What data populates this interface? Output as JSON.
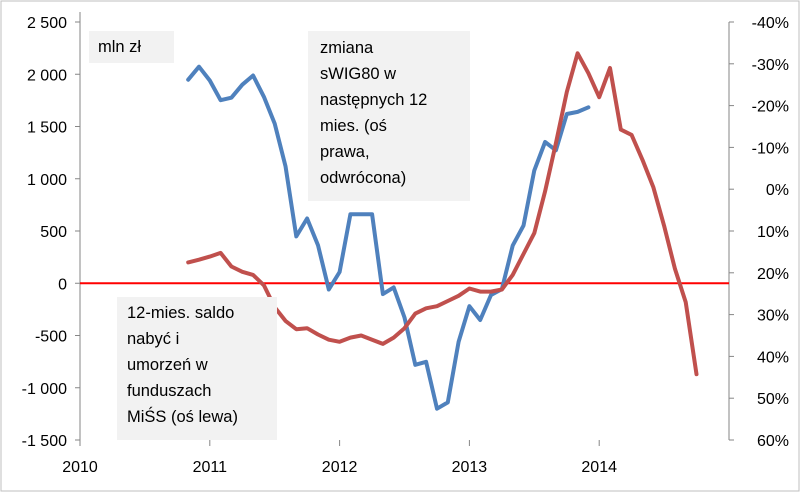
{
  "chart_data": {
    "type": "line",
    "x_ticks": [
      "2010",
      "2011",
      "2012",
      "2013",
      "2014"
    ],
    "left_axis": {
      "unit": "mln zł",
      "ylim": [
        -1500,
        2500
      ],
      "tick_labels": [
        "2 500",
        "2 000",
        "1 500",
        "1 000",
        "500",
        "0",
        "-500",
        "-1 000",
        "-1 500"
      ]
    },
    "right_axis": {
      "inverted": true,
      "ylim": [
        -40,
        60
      ],
      "tick_labels": [
        "-40%",
        "-30%",
        "-20%",
        "-10%",
        "0%",
        "10%",
        "20%",
        "30%",
        "40%",
        "50%",
        "60%"
      ]
    },
    "annotations": {
      "right_series": [
        "zmiana",
        "sWIG80 w",
        "następnych 12",
        "mies. (oś",
        "prawa,",
        "odwrócona)"
      ],
      "left_series": [
        "12-mies. saldo",
        "nabyć i",
        "umorzeń w",
        "funduszach",
        "MiŚS (oś lewa)"
      ]
    },
    "series": [
      {
        "axis": "right",
        "color": "#4f81bd",
        "points": [
          [
            "2010-11",
            -26.2
          ],
          [
            "2010-12",
            -29.3
          ],
          [
            "2011-01",
            -26.0
          ],
          [
            "2011-02",
            -21.3
          ],
          [
            "2011-03",
            -21.9
          ],
          [
            "2011-04",
            -25.0
          ],
          [
            "2011-05",
            -27.2
          ],
          [
            "2011-06",
            -22.1
          ],
          [
            "2011-07",
            -15.7
          ],
          [
            "2011-08",
            -5.5
          ],
          [
            "2011-09",
            11.3
          ],
          [
            "2011-10",
            7.0
          ],
          [
            "2011-11",
            13.4
          ],
          [
            "2011-12",
            24.0
          ],
          [
            "2012-01",
            19.8
          ],
          [
            "2012-02",
            6.0
          ],
          [
            "2012-03",
            6.0
          ],
          [
            "2012-04",
            6.0
          ],
          [
            "2012-05",
            25.1
          ],
          [
            "2012-06",
            23.5
          ],
          [
            "2012-07",
            30.7
          ],
          [
            "2012-08",
            42.0
          ],
          [
            "2012-09",
            41.3
          ],
          [
            "2012-10",
            52.5
          ],
          [
            "2012-11",
            51.0
          ],
          [
            "2012-12",
            36.5
          ],
          [
            "2013-01",
            28.0
          ],
          [
            "2013-02",
            31.3
          ],
          [
            "2013-03",
            25.3
          ],
          [
            "2013-04",
            23.9
          ],
          [
            "2013-05",
            13.5
          ],
          [
            "2013-06",
            8.7
          ],
          [
            "2013-07",
            -4.5
          ],
          [
            "2013-08",
            -11.3
          ],
          [
            "2013-09",
            -9.3
          ],
          [
            "2013-10",
            -18.0
          ],
          [
            "2013-11",
            -18.5
          ],
          [
            "2013-12",
            -19.6
          ]
        ]
      },
      {
        "axis": "left",
        "color": "#c0504d",
        "points": [
          [
            "2010-11",
            200
          ],
          [
            "2010-12",
            225
          ],
          [
            "2011-01",
            255
          ],
          [
            "2011-02",
            290
          ],
          [
            "2011-03",
            160
          ],
          [
            "2011-04",
            110
          ],
          [
            "2011-05",
            80
          ],
          [
            "2011-06",
            -20
          ],
          [
            "2011-07",
            -230
          ],
          [
            "2011-08",
            -360
          ],
          [
            "2011-09",
            -440
          ],
          [
            "2011-10",
            -430
          ],
          [
            "2011-11",
            -490
          ],
          [
            "2011-12",
            -540
          ],
          [
            "2012-01",
            -560
          ],
          [
            "2012-02",
            -520
          ],
          [
            "2012-03",
            -500
          ],
          [
            "2012-04",
            -540
          ],
          [
            "2012-05",
            -580
          ],
          [
            "2012-06",
            -520
          ],
          [
            "2012-07",
            -430
          ],
          [
            "2012-08",
            -290
          ],
          [
            "2012-09",
            -240
          ],
          [
            "2012-10",
            -220
          ],
          [
            "2012-11",
            -170
          ],
          [
            "2012-12",
            -120
          ],
          [
            "2013-01",
            -50
          ],
          [
            "2013-02",
            -80
          ],
          [
            "2013-03",
            -80
          ],
          [
            "2013-04",
            -60
          ],
          [
            "2013-05",
            80
          ],
          [
            "2013-06",
            280
          ],
          [
            "2013-07",
            480
          ],
          [
            "2013-08",
            880
          ],
          [
            "2013-09",
            1340
          ],
          [
            "2013-10",
            1830
          ],
          [
            "2013-11",
            2200
          ],
          [
            "2013-12",
            2010
          ],
          [
            "2014-01",
            1780
          ],
          [
            "2014-02",
            2060
          ],
          [
            "2014-03",
            1470
          ],
          [
            "2014-04",
            1420
          ],
          [
            "2014-05",
            1180
          ],
          [
            "2014-06",
            920
          ],
          [
            "2014-07",
            550
          ],
          [
            "2014-08",
            140
          ],
          [
            "2014-09",
            -180
          ],
          [
            "2014-10",
            -870
          ]
        ]
      }
    ],
    "reference_line": {
      "value": 0,
      "axis": "left",
      "color": "#ff0000"
    },
    "grid": false,
    "legend": "none"
  }
}
